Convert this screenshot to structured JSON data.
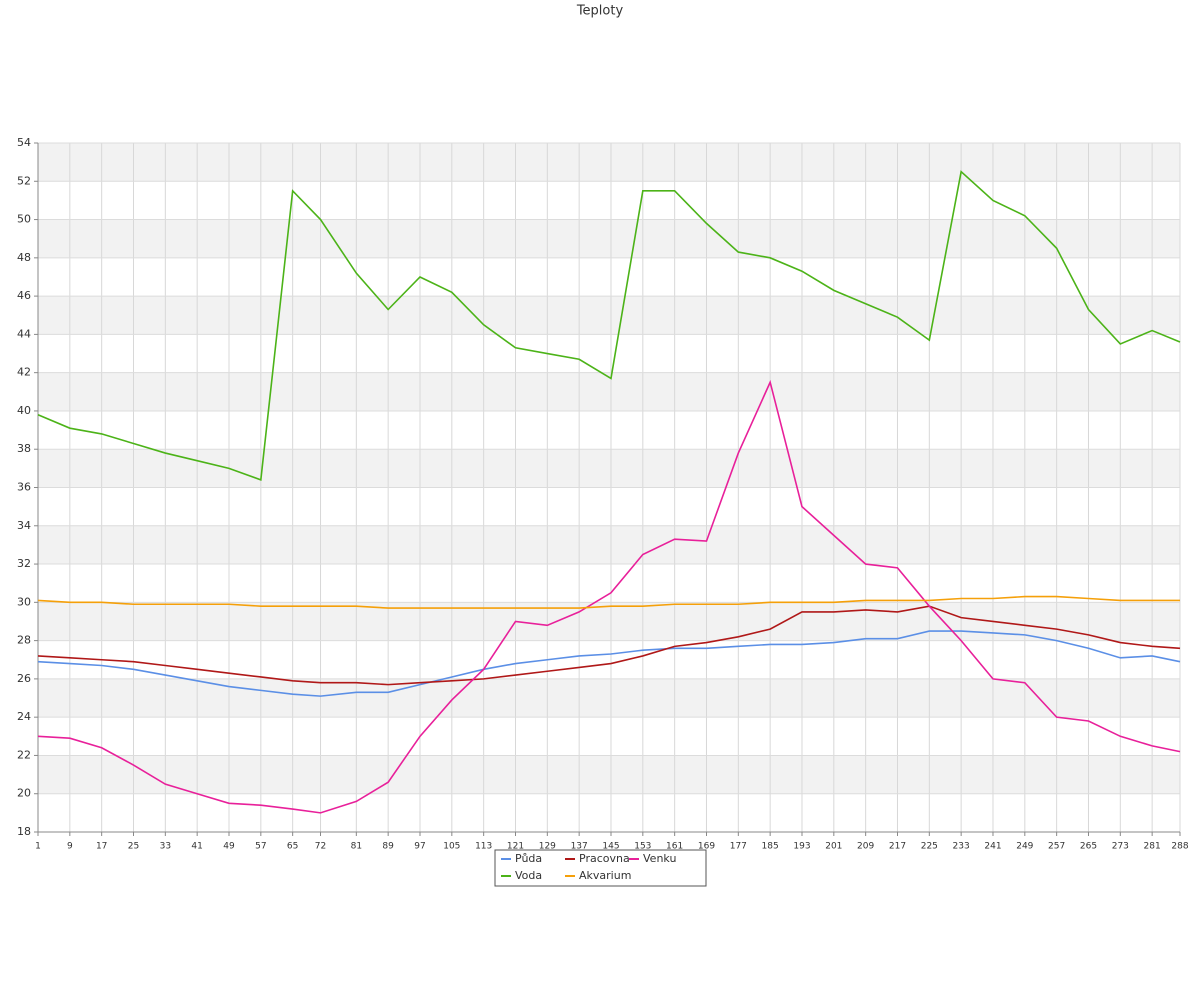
{
  "chart_data": {
    "type": "line",
    "title": "Teploty",
    "x": [
      1,
      9,
      17,
      25,
      33,
      41,
      49,
      57,
      65,
      72,
      81,
      89,
      97,
      105,
      113,
      121,
      129,
      137,
      145,
      153,
      161,
      169,
      177,
      185,
      193,
      201,
      209,
      217,
      225,
      233,
      241,
      249,
      257,
      265,
      273,
      281,
      288
    ],
    "xlim": [
      1,
      288
    ],
    "xticks": [
      1,
      9,
      17,
      25,
      33,
      41,
      49,
      57,
      65,
      72,
      81,
      89,
      97,
      105,
      113,
      121,
      129,
      137,
      145,
      153,
      161,
      169,
      177,
      185,
      193,
      201,
      209,
      217,
      225,
      233,
      241,
      249,
      257,
      265,
      273,
      281,
      288
    ],
    "ylim": [
      18,
      54
    ],
    "yticks": [
      18,
      20,
      22,
      24,
      26,
      28,
      30,
      32,
      34,
      36,
      38,
      40,
      42,
      44,
      46,
      48,
      50,
      52,
      54
    ],
    "grid": true,
    "legend": "bottom",
    "series": [
      {
        "name": "Půda",
        "color": "#5b8fe6",
        "values": [
          26.9,
          26.8,
          26.7,
          26.5,
          26.2,
          25.9,
          25.6,
          25.4,
          25.2,
          25.1,
          25.3,
          25.3,
          25.7,
          26.1,
          26.5,
          26.8,
          27.0,
          27.2,
          27.3,
          27.5,
          27.6,
          27.6,
          27.7,
          27.8,
          27.8,
          27.9,
          28.1,
          28.1,
          28.5,
          28.5,
          28.4,
          28.3,
          28.0,
          27.6,
          27.1,
          27.2,
          26.9
        ]
      },
      {
        "name": "Pracovna",
        "color": "#b01818",
        "values": [
          27.2,
          27.1,
          27.0,
          26.9,
          26.7,
          26.5,
          26.3,
          26.1,
          25.9,
          25.8,
          25.8,
          25.7,
          25.8,
          25.9,
          26.0,
          26.2,
          26.4,
          26.6,
          26.8,
          27.2,
          27.7,
          27.9,
          28.2,
          28.6,
          29.5,
          29.5,
          29.6,
          29.5,
          29.8,
          29.2,
          29.0,
          28.8,
          28.6,
          28.3,
          27.9,
          27.7,
          27.6
        ]
      },
      {
        "name": "Venku",
        "color": "#e8209a",
        "values": [
          23.0,
          22.9,
          22.4,
          21.5,
          20.5,
          20.0,
          19.5,
          19.4,
          19.2,
          19.0,
          19.6,
          20.6,
          23.0,
          24.9,
          26.5,
          29.0,
          28.8,
          29.5,
          30.5,
          32.5,
          33.3,
          33.2,
          37.8,
          41.5,
          35.0,
          33.5,
          32.0,
          31.8,
          29.8,
          28.0,
          26.0,
          25.8,
          24.0,
          23.8,
          23.0,
          22.5,
          22.2
        ]
      },
      {
        "name": "Voda",
        "color": "#4cb318",
        "values": [
          39.8,
          39.1,
          38.8,
          38.3,
          37.8,
          37.4,
          37.0,
          36.4,
          51.5,
          50.0,
          47.2,
          45.3,
          47.0,
          46.2,
          44.5,
          43.3,
          43.0,
          42.7,
          41.7,
          51.5,
          51.5,
          49.8,
          48.3,
          48.0,
          47.3,
          46.3,
          45.6,
          44.9,
          43.7,
          52.5,
          51.0,
          50.2,
          48.5,
          45.3,
          43.5,
          44.2,
          43.6
        ]
      },
      {
        "name": "Akvarium",
        "color": "#f5a00a",
        "values": [
          30.1,
          30.0,
          30.0,
          29.9,
          29.9,
          29.9,
          29.9,
          29.8,
          29.8,
          29.8,
          29.8,
          29.7,
          29.7,
          29.7,
          29.7,
          29.7,
          29.7,
          29.7,
          29.8,
          29.8,
          29.9,
          29.9,
          29.9,
          30.0,
          30.0,
          30.0,
          30.1,
          30.1,
          30.1,
          30.2,
          30.2,
          30.3,
          30.3,
          30.2,
          30.1,
          30.1,
          30.1
        ]
      }
    ]
  }
}
